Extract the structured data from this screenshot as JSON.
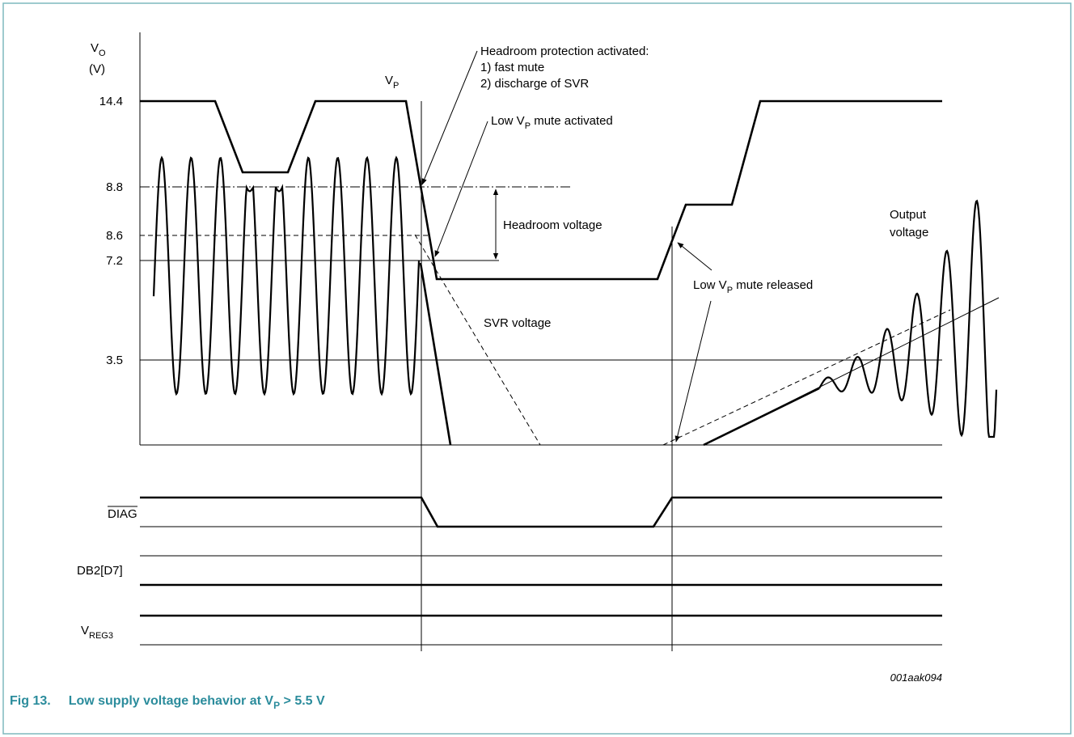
{
  "axis": {
    "label": {
      "main": "V",
      "sub": "O"
    },
    "unit": "(V)",
    "ticks": [
      "14.4",
      "8.8",
      "8.6",
      "7.2",
      "3.5"
    ]
  },
  "vp_label": {
    "main": "V",
    "sub": "P"
  },
  "annotations": {
    "headroom_protection": [
      "Headroom protection activated:",
      "1) fast mute",
      "2) discharge of SVR"
    ],
    "mute_activated": {
      "pre": "Low V",
      "sub": "P",
      "post": " mute activated"
    },
    "headroom_voltage": "Headroom voltage",
    "svr_voltage": "SVR voltage",
    "mute_released": {
      "pre": "Low V",
      "sub": "P",
      "post": " mute released"
    },
    "output_voltage": [
      "Output",
      "voltage"
    ]
  },
  "signals": {
    "diag": "DIAG",
    "db2": "DB2[D7]",
    "vreg3": {
      "main": "V",
      "sub": "REG3"
    }
  },
  "figure_id": "001aak094",
  "caption": {
    "number": "Fig 13.",
    "pre": "Low supply voltage behavior at V",
    "sub": "P",
    "post": " > 5.5 V"
  }
}
